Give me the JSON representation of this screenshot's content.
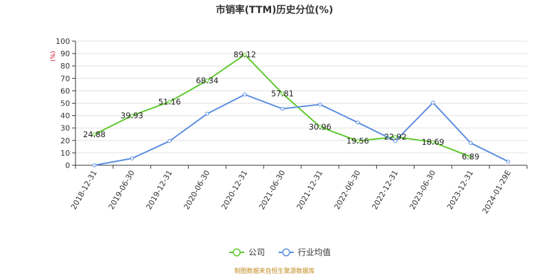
{
  "title": "市销率(TTM)历史分位(%)",
  "source_note": "制图数据来自恒生聚源数据库",
  "chart_data": {
    "type": "line",
    "title": "市销率(TTM)历史分位(%)",
    "ylabel": "(%)",
    "ylim": [
      0,
      100
    ],
    "yticks": [
      0,
      10,
      20,
      30,
      40,
      50,
      60,
      70,
      80,
      90,
      100
    ],
    "grid": true,
    "legend_position": "bottom",
    "categories": [
      "2018-12-31",
      "2019-06-30",
      "2019-12-31",
      "2020-06-30",
      "2020-12-31",
      "2021-06-30",
      "2021-12-31",
      "2022-06-30",
      "2022-12-31",
      "2023-06-30",
      "2023-12-31",
      "2024-01-29E"
    ],
    "series": [
      {
        "name": "公司",
        "color": "#5cc92a",
        "values": [
          24.88,
          39.93,
          51.16,
          68.34,
          89.12,
          57.81,
          30.96,
          19.56,
          22.92,
          18.69,
          6.89,
          null
        ],
        "labels": [
          "24.88",
          "39.93",
          "51.16",
          "68.34",
          "89.12",
          "57.81",
          "30.96",
          "19.56",
          "22.92",
          "18.69",
          "6.89",
          null
        ]
      },
      {
        "name": "行业均值",
        "color": "#5b8de0",
        "values": [
          0,
          5.5,
          19.5,
          41.5,
          57,
          45.5,
          49,
          34.5,
          19.5,
          50.5,
          18,
          3
        ]
      }
    ]
  }
}
